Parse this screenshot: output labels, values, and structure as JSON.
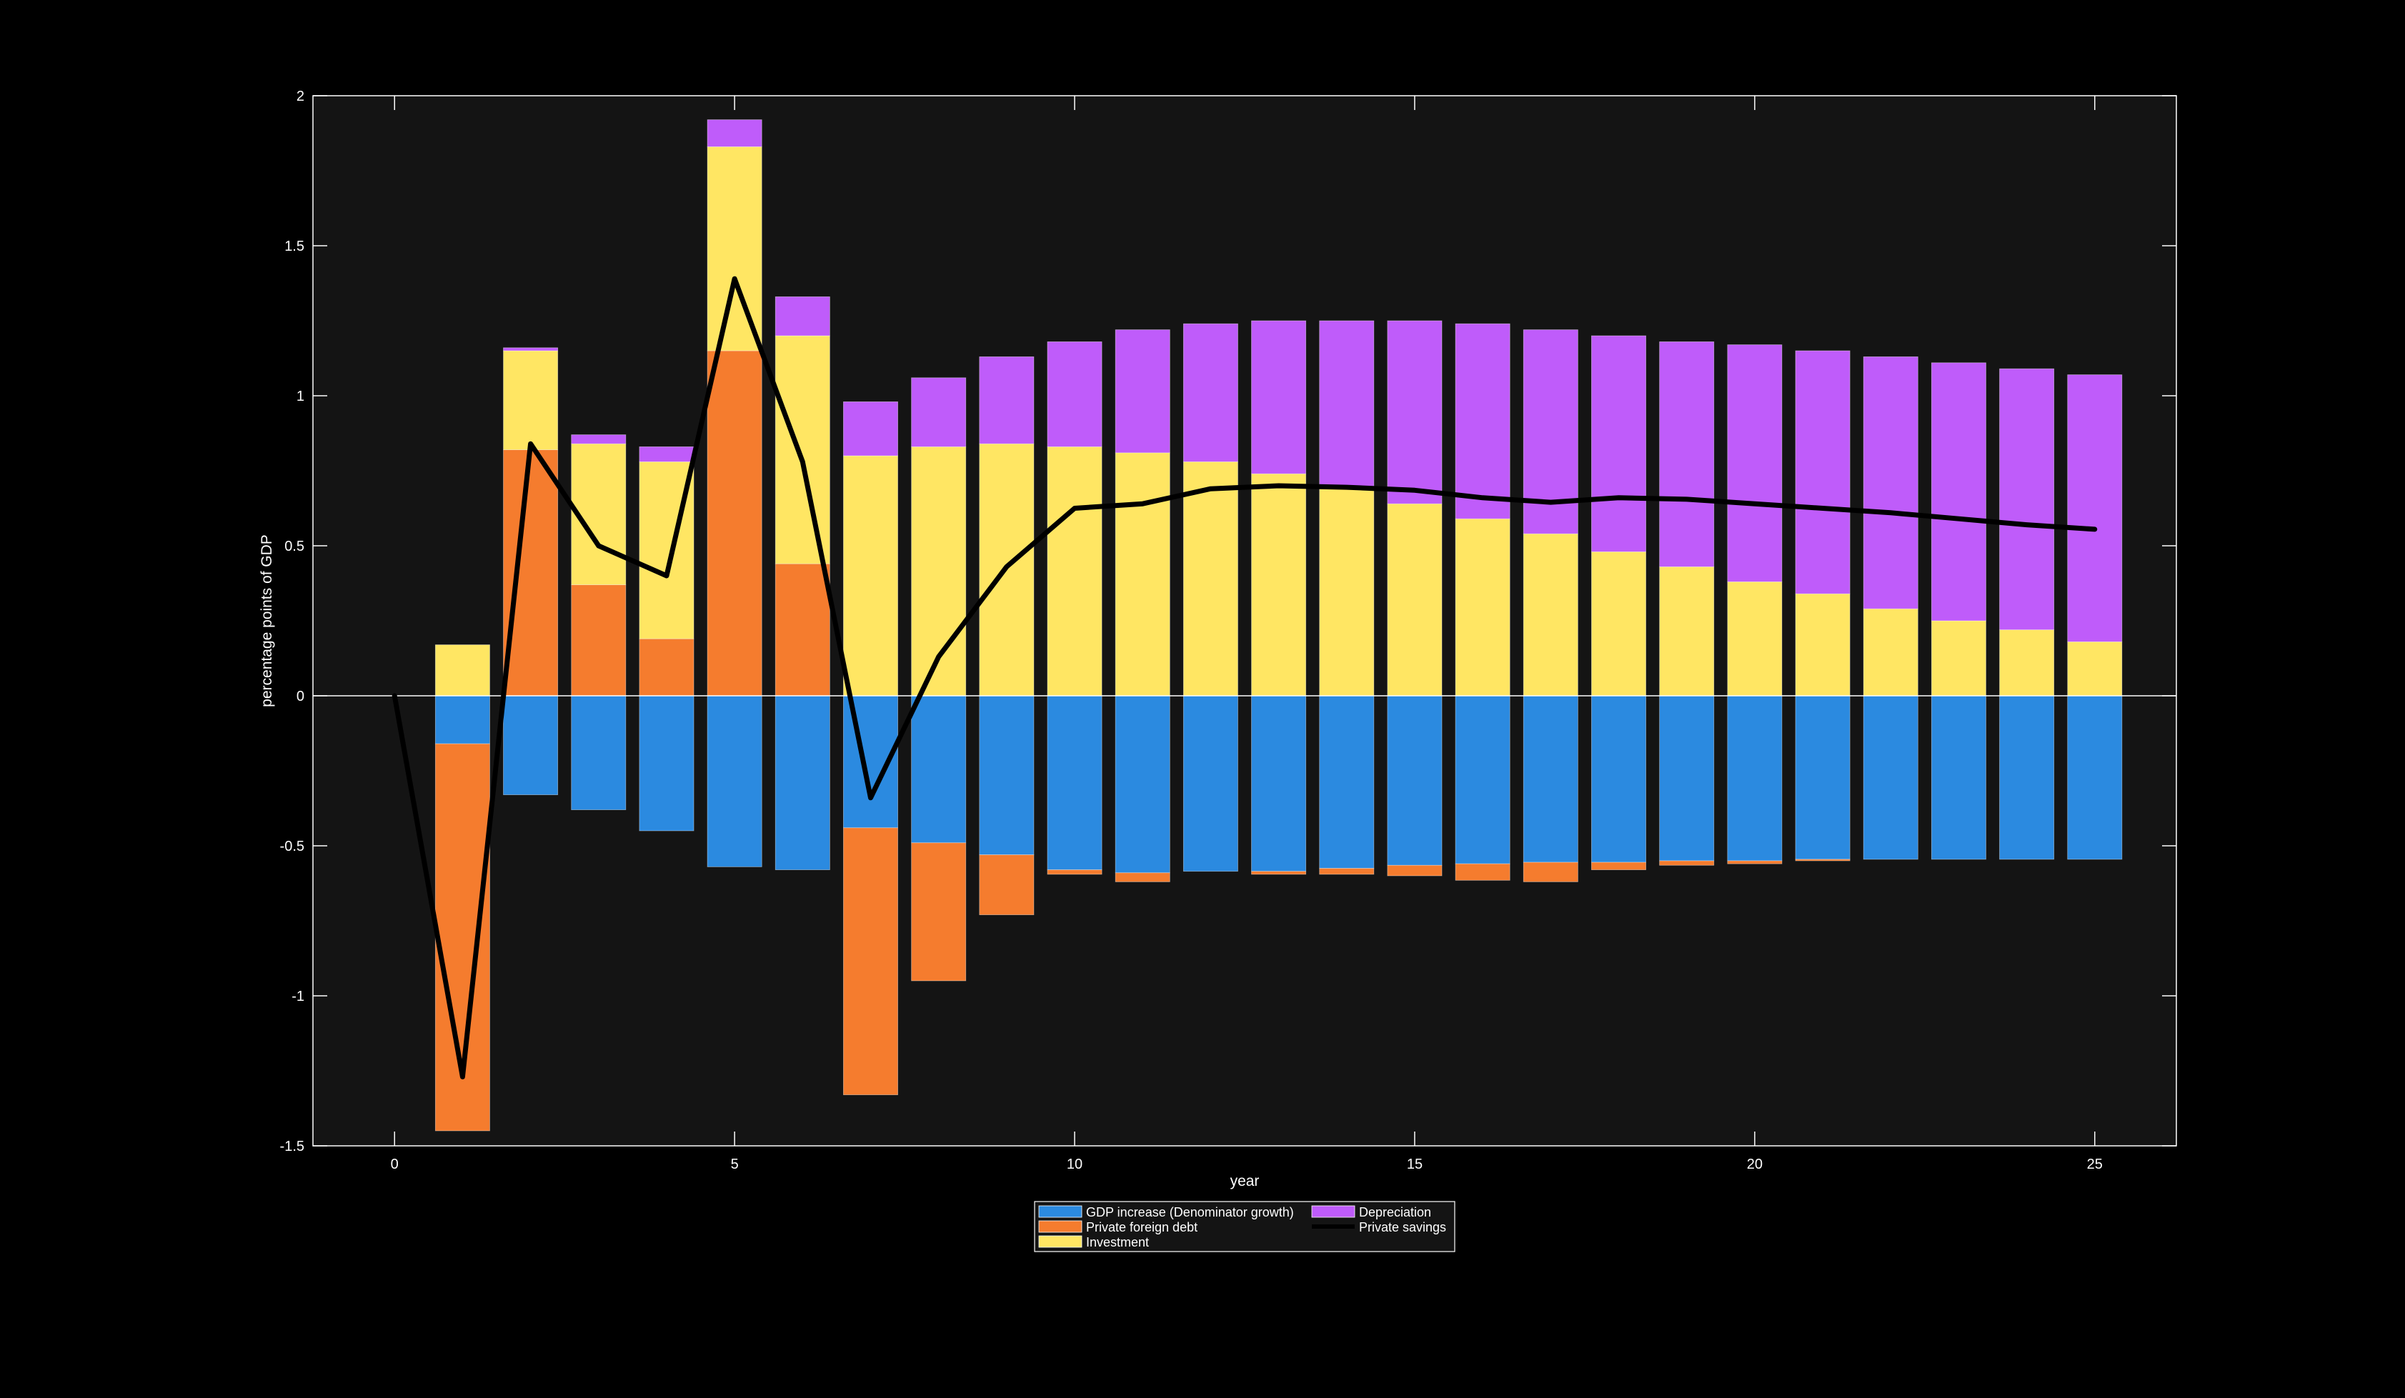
{
  "chart_data": {
    "type": "bar",
    "stacked": true,
    "title": "",
    "xlabel": "year",
    "ylabel": "percentage points of GDP",
    "xlim": [
      -1.2,
      26.2
    ],
    "ylim": [
      -1.5,
      2
    ],
    "xticks": [
      0,
      5,
      10,
      15,
      20,
      25
    ],
    "yticks": [
      -1.5,
      -1,
      -0.5,
      0,
      0.5,
      1,
      1.5,
      2
    ],
    "ytick_labels": [
      "-1.5",
      "-1",
      "-0.5",
      "0",
      "0.5",
      "1",
      "1.5",
      "2"
    ],
    "grid": false,
    "legend_position": "bottom-center",
    "background_color": "#141414",
    "axis_color": "#ffffff",
    "x": [
      1,
      2,
      3,
      4,
      5,
      6,
      7,
      8,
      9,
      10,
      11,
      12,
      13,
      14,
      15,
      16,
      17,
      18,
      19,
      20,
      21,
      22,
      23,
      24,
      25
    ],
    "series": [
      {
        "name": "GDP increase (Denominator growth)",
        "color": "#2b8ae0",
        "values": [
          -0.16,
          -0.33,
          -0.38,
          -0.45,
          -0.57,
          -0.58,
          -0.44,
          -0.49,
          -0.53,
          -0.58,
          -0.59,
          -0.585,
          -0.585,
          -0.575,
          -0.565,
          -0.56,
          -0.555,
          -0.555,
          -0.55,
          -0.55,
          -0.545,
          -0.545,
          -0.545,
          -0.545,
          -0.545
        ]
      },
      {
        "name": "Private foreign debt",
        "color": "#f57c2e",
        "values": [
          -1.29,
          0.82,
          0.37,
          0.19,
          1.15,
          0.44,
          -0.89,
          -0.46,
          -0.2,
          -0.015,
          -0.03,
          0,
          -0.01,
          -0.02,
          -0.035,
          -0.055,
          -0.065,
          -0.025,
          -0.015,
          -0.01,
          -0.005,
          0,
          0,
          0,
          0
        ]
      },
      {
        "name": "Investment",
        "color": "#ffe663",
        "values": [
          0.17,
          0.33,
          0.47,
          0.59,
          0.68,
          0.76,
          0.8,
          0.83,
          0.84,
          0.83,
          0.81,
          0.78,
          0.74,
          0.69,
          0.64,
          0.59,
          0.54,
          0.48,
          0.43,
          0.38,
          0.34,
          0.29,
          0.25,
          0.22,
          0.18
        ]
      },
      {
        "name": "Depreciation",
        "color": "#bf5cfa",
        "values": [
          0,
          0.01,
          0.03,
          0.05,
          0.09,
          0.13,
          0.18,
          0.23,
          0.29,
          0.35,
          0.41,
          0.46,
          0.51,
          0.56,
          0.61,
          0.65,
          0.68,
          0.72,
          0.75,
          0.79,
          0.81,
          0.84,
          0.86,
          0.87,
          0.89
        ]
      }
    ],
    "line_series": {
      "name": "Private savings",
      "color": "#000000",
      "x": [
        0,
        1,
        2,
        3,
        4,
        5,
        6,
        7,
        8,
        9,
        10,
        11,
        12,
        13,
        14,
        15,
        16,
        17,
        18,
        19,
        20,
        21,
        22,
        23,
        24,
        25
      ],
      "values": [
        0,
        -1.27,
        0.84,
        0.5,
        0.4,
        1.39,
        0.78,
        -0.34,
        0.13,
        0.43,
        0.625,
        0.64,
        0.69,
        0.7,
        0.695,
        0.685,
        0.66,
        0.645,
        0.66,
        0.655,
        0.64,
        0.625,
        0.61,
        0.59,
        0.57,
        0.555
      ]
    }
  }
}
